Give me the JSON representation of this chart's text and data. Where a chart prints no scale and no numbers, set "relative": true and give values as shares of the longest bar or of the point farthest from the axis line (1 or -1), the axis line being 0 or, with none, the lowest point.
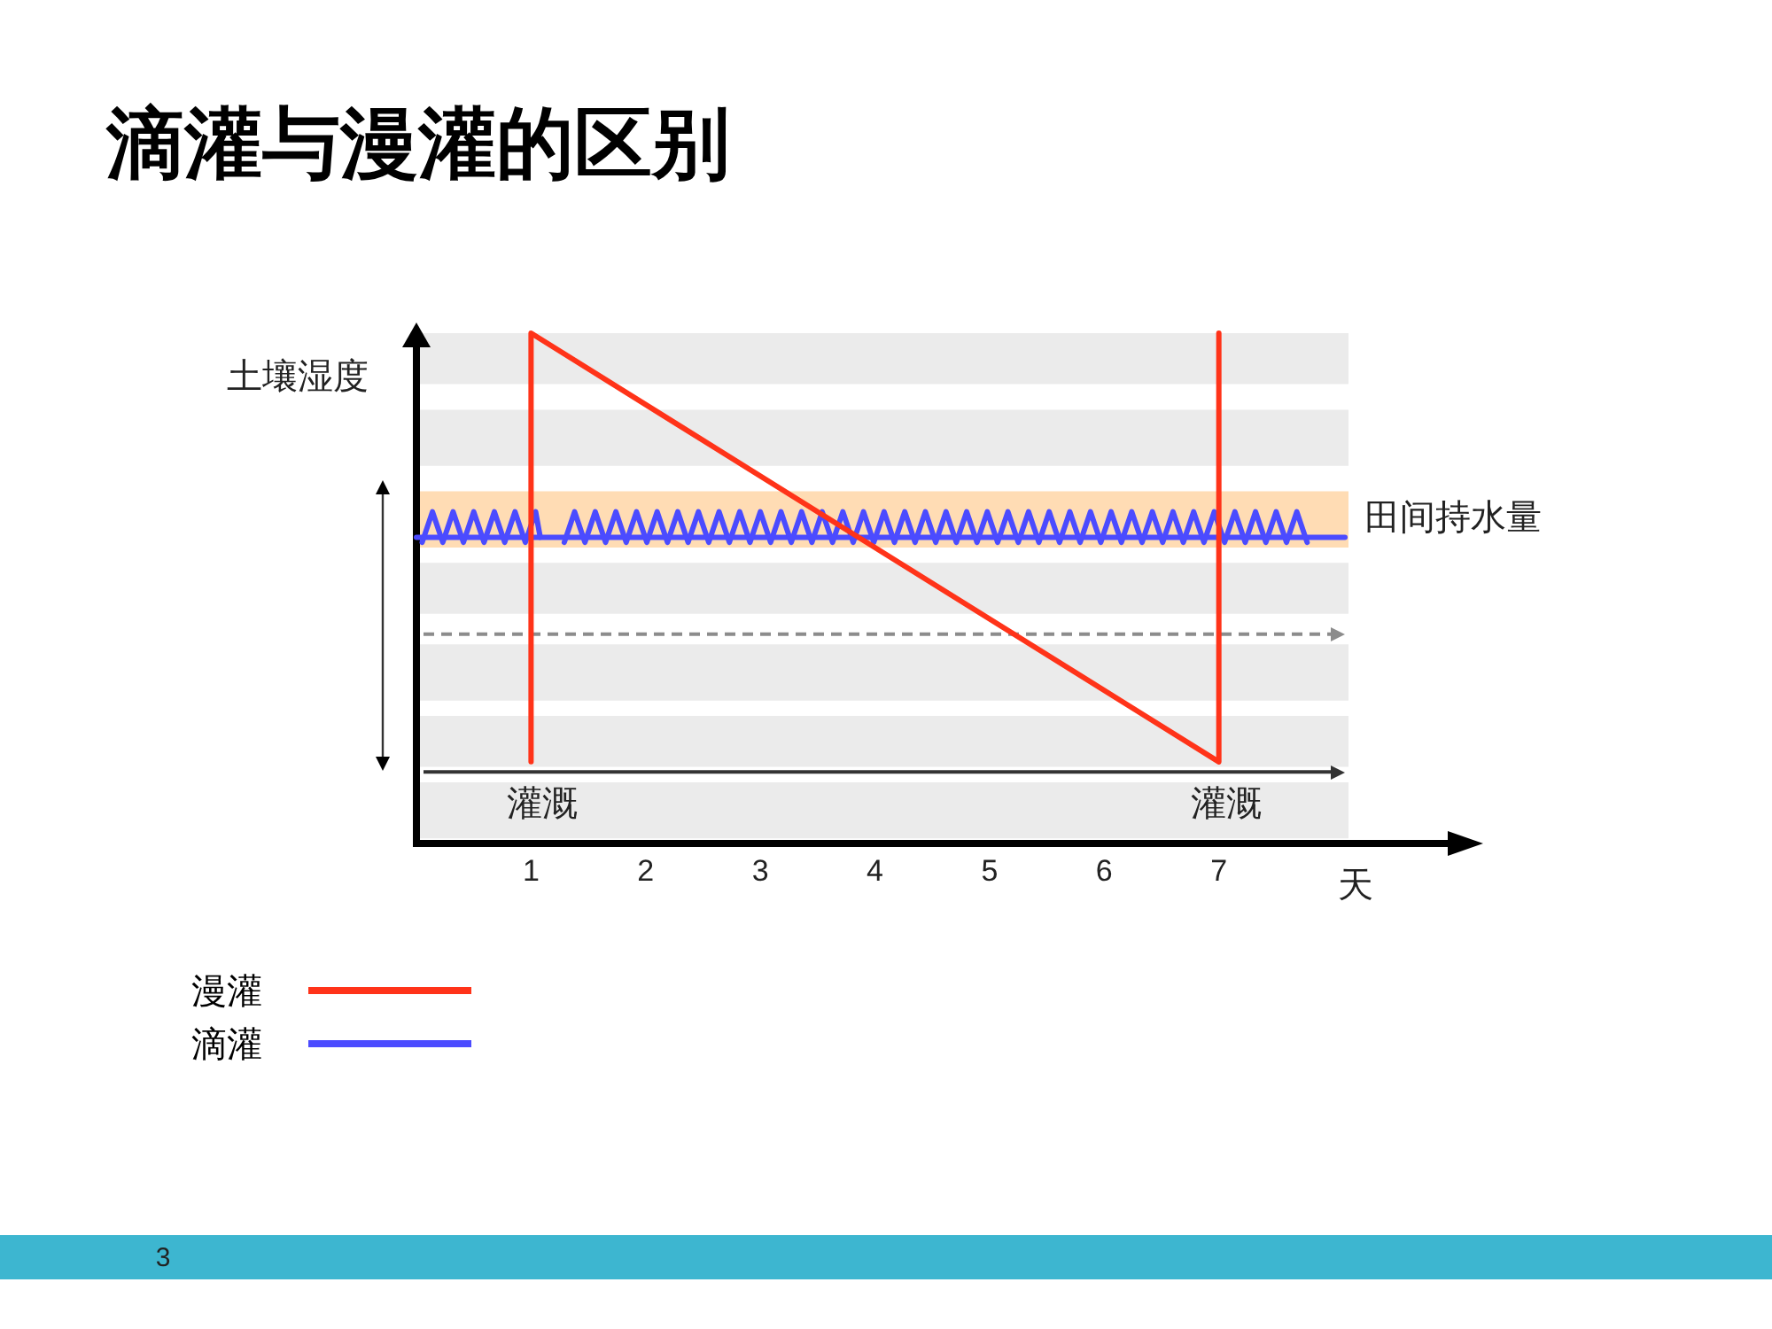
{
  "chart_data": {
    "type": "line",
    "title": "滴灌与漫灌的区别",
    "xlabel": "天",
    "ylabel": "土壤湿度",
    "relative": true,
    "xlim": [
      0,
      8.1
    ],
    "xticks": [
      1,
      2,
      3,
      4,
      5,
      6,
      7
    ],
    "series": [
      {
        "name": "漫灌",
        "color": "#ff3319",
        "x": [
          1,
          1,
          7,
          7
        ],
        "values": [
          0.16,
          1,
          0.16,
          1
        ]
      },
      {
        "name": "滴灌",
        "color": "#4b4bff",
        "x": [
          0.05,
          0.14,
          0.23,
          0.32,
          0.41,
          0.5,
          0.59,
          0.68,
          0.77,
          0.86,
          0.95,
          1.04,
          1.08,
          1.18,
          1.29,
          1.38,
          1.47,
          1.56,
          1.65,
          1.74,
          1.83,
          1.92,
          2.01,
          2.1,
          2.19,
          2.28,
          2.37,
          2.46,
          2.55,
          2.64,
          2.73,
          2.82,
          2.91,
          3,
          3.09,
          3.18,
          3.27,
          3.36,
          3.45,
          3.54,
          3.63,
          3.72,
          3.81,
          3.9,
          3.99,
          4.08,
          4.17,
          4.26,
          4.35,
          4.44,
          4.53,
          4.62,
          4.71,
          4.8,
          4.89,
          4.98,
          5.07,
          5.16,
          5.25,
          5.34,
          5.43,
          5.52,
          5.61,
          5.7,
          5.79,
          5.88,
          5.97,
          6.06,
          6.15,
          6.24,
          6.33,
          6.42,
          6.51,
          6.6,
          6.69,
          6.78,
          6.87,
          6.96,
          7.05,
          7.14,
          7.23,
          7.32,
          7.41,
          7.5,
          7.59,
          7.68,
          7.77
        ],
        "values": [
          0.59,
          0.65,
          0.59,
          0.65,
          0.59,
          0.65,
          0.59,
          0.65,
          0.59,
          0.65,
          0.59,
          0.65,
          0.6,
          null,
          0.59,
          0.65,
          0.59,
          0.65,
          0.59,
          0.65,
          0.59,
          0.65,
          0.59,
          0.65,
          0.59,
          0.65,
          0.59,
          0.65,
          0.59,
          0.65,
          0.59,
          0.65,
          0.59,
          0.65,
          0.59,
          0.65,
          0.59,
          0.65,
          0.59,
          0.65,
          0.59,
          0.65,
          0.59,
          0.65,
          0.59,
          0.65,
          0.59,
          0.65,
          0.59,
          0.65,
          0.59,
          0.65,
          0.59,
          0.65,
          0.59,
          0.65,
          0.59,
          0.65,
          0.59,
          0.65,
          0.59,
          0.65,
          0.59,
          0.65,
          0.59,
          0.65,
          0.59,
          0.65,
          0.59,
          0.65,
          0.59,
          0.65,
          0.59,
          0.65,
          0.59,
          0.65,
          0.59,
          0.65,
          0.59,
          0.65,
          0.59,
          0.65,
          0.59,
          0.65,
          0.59,
          0.65,
          0.59
        ]
      },
      {
        "color": "#4b4bff",
        "x": [
          0,
          8.1
        ],
        "values": [
          0.6,
          0.6
        ]
      }
    ],
    "bands": [
      {
        "axis": "y",
        "from": 0.9,
        "to": 1,
        "color": "#ebebeb"
      },
      {
        "axis": "y",
        "from": 0.74,
        "to": 0.85,
        "color": "#ebebeb"
      },
      {
        "axis": "y",
        "from": 0.58,
        "to": 0.69,
        "label": "田间持水量",
        "color": "#ffdcb4"
      },
      {
        "axis": "y",
        "from": 0.45,
        "to": 0.55,
        "color": "#ebebeb"
      },
      {
        "axis": "y",
        "from": 0.28,
        "to": 0.39,
        "color": "#ebebeb"
      },
      {
        "axis": "y",
        "from": 0.15,
        "to": 0.25,
        "color": "#ebebeb"
      },
      {
        "axis": "y",
        "from": 0.01,
        "to": 0.12,
        "color": "#ebebeb"
      }
    ],
    "ref_lines": [
      {
        "axis": "y",
        "value": 0.41,
        "color": "#8c8c8c",
        "line_style": "dashed"
      },
      {
        "axis": "y",
        "value": 0.14,
        "color": "#333333"
      }
    ],
    "annotations": [
      "灌溉",
      "灌溉",
      "3"
    ],
    "legend": "bottom left"
  }
}
